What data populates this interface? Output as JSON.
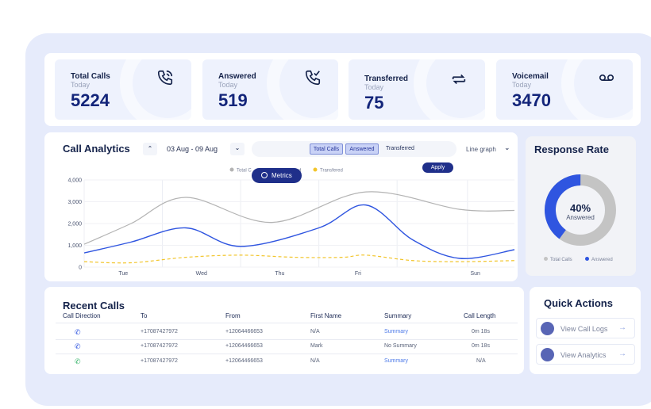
{
  "kpis": [
    {
      "title": "Total Calls",
      "sub": "Today",
      "value": "5224",
      "icon": "phone-icon"
    },
    {
      "title": "Answered",
      "sub": "Today",
      "value": "519",
      "icon": "phone-check-icon"
    },
    {
      "title": "Transferred",
      "sub": "Today",
      "value": "75",
      "icon": "transfer-icon"
    },
    {
      "title": "Voicemail",
      "sub": "Today",
      "value": "3470",
      "icon": "voicemail-icon"
    }
  ],
  "analytics": {
    "title": "Call Analytics",
    "date_range": "03 Aug - 09 Aug",
    "segments": [
      "Total Calls",
      "Answered",
      "Transferred"
    ],
    "chart_type_label": "Line graph",
    "apply_label": "Apply",
    "metrics_label": "Metrics"
  },
  "chart_data": {
    "type": "line",
    "x_labels": [
      "Tue",
      "Wed",
      "Thu",
      "Fri",
      "Sun"
    ],
    "y_ticks": [
      "0",
      "1,000",
      "2,000",
      "3,000",
      "4,000"
    ],
    "ylim": [
      0,
      4000
    ],
    "legend": [
      "Total C",
      "d",
      "Transfered"
    ],
    "series": [
      {
        "name": "Total Calls",
        "color": "#b3b3b3",
        "dashed": false,
        "points": [
          [
            0,
            1050
          ],
          [
            0.6,
            2000
          ],
          [
            1.3,
            3200
          ],
          [
            2.4,
            2050
          ],
          [
            3.6,
            3450
          ],
          [
            4.8,
            2650
          ],
          [
            5.5,
            2600
          ]
        ]
      },
      {
        "name": "Answered",
        "color": "#2f55e0",
        "dashed": false,
        "points": [
          [
            0,
            650
          ],
          [
            0.6,
            1150
          ],
          [
            1.3,
            1800
          ],
          [
            2,
            950
          ],
          [
            3,
            1800
          ],
          [
            3.6,
            2850
          ],
          [
            4.2,
            1250
          ],
          [
            4.8,
            400
          ],
          [
            5.5,
            800
          ]
        ]
      },
      {
        "name": "Transferred",
        "color": "#f2c52b",
        "dashed": true,
        "points": [
          [
            0,
            250
          ],
          [
            0.6,
            200
          ],
          [
            1.3,
            450
          ],
          [
            2,
            550
          ],
          [
            2.7,
            450
          ],
          [
            3.3,
            450
          ],
          [
            3.6,
            550
          ],
          [
            4.2,
            300
          ],
          [
            4.8,
            250
          ],
          [
            5.5,
            300
          ]
        ]
      }
    ]
  },
  "response_rate": {
    "title": "Response Rate",
    "percent": "40%",
    "caption": "Answered",
    "fraction": 0.4,
    "legend": [
      "Total Calls",
      "Answered"
    ],
    "colors": {
      "answered": "#2f55e0",
      "total": "#c4c4c4"
    }
  },
  "recent_calls": {
    "title": "Recent Calls",
    "columns": [
      "Call Direction",
      "To",
      "From",
      "First Name",
      "Summary",
      "Call Length"
    ],
    "rows": [
      {
        "direction": "outgoing",
        "icon_color": "#2f55e0",
        "to": "+17087427972",
        "from": "+12064466653",
        "name": "N/A",
        "summary": "Summary",
        "summary_link": true,
        "length": "0m 18s"
      },
      {
        "direction": "outgoing",
        "icon_color": "#2f55e0",
        "to": "+17087427972",
        "from": "+12064466653",
        "name": "Mark",
        "summary": "No Summary",
        "summary_link": false,
        "length": "0m 18s"
      },
      {
        "direction": "incoming",
        "icon_color": "#36b36a",
        "to": "+17087427972",
        "from": "+12064466653",
        "name": "N/A",
        "summary": "Summary",
        "summary_link": true,
        "length": "N/A"
      }
    ]
  },
  "quick_actions": {
    "title": "Quick Actions",
    "items": [
      {
        "label": "View Call Logs",
        "icon": "call-log-icon"
      },
      {
        "label": "View Analytics",
        "icon": "analytics-icon"
      }
    ]
  }
}
